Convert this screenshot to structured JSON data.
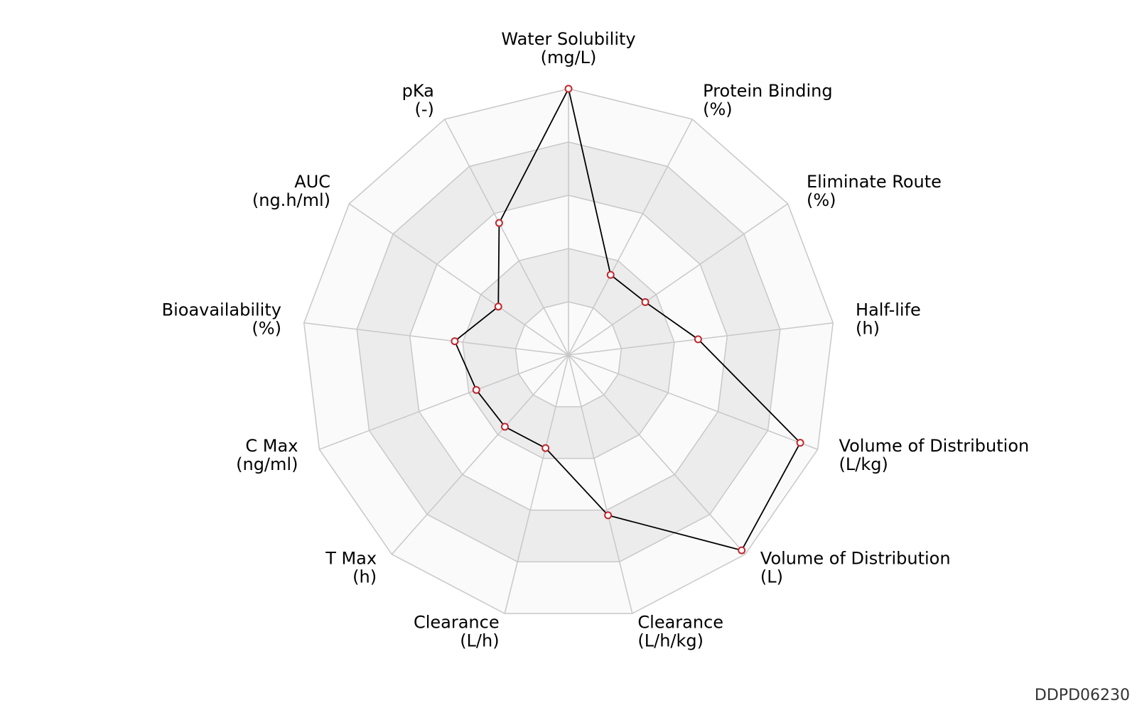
{
  "chart_data": {
    "type": "radar",
    "axes": [
      {
        "name": "Water Solubility",
        "unit": "(mg/L)"
      },
      {
        "name": "Protein Binding",
        "unit": "(%)"
      },
      {
        "name": "Eliminate Route",
        "unit": "(%)"
      },
      {
        "name": "Half-life",
        "unit": "(h)"
      },
      {
        "name": "Volume of Distribution",
        "unit": "(L/kg)"
      },
      {
        "name": "Volume of Distribution",
        "unit": "(L)"
      },
      {
        "name": "Clearance",
        "unit": "(L/h/kg)"
      },
      {
        "name": "Clearance",
        "unit": "(L/h)"
      },
      {
        "name": "T Max",
        "unit": "(h)"
      },
      {
        "name": "C Max",
        "unit": "(ng/ml)"
      },
      {
        "name": "Bioavailability",
        "unit": "(%)"
      },
      {
        "name": "AUC",
        "unit": "(ng.h/ml)"
      },
      {
        "name": "pKa",
        "unit": "(-)"
      }
    ],
    "values": [
      1.0,
      0.34,
      0.35,
      0.49,
      0.93,
      0.98,
      0.62,
      0.36,
      0.36,
      0.37,
      0.43,
      0.32,
      0.56
    ],
    "range": [
      0,
      1
    ],
    "rings": 5,
    "colors": {
      "band_light": "#fafafa",
      "band_dark": "#ececec",
      "grid": "#c8c8c8",
      "line": "#000000",
      "marker": "#c0272d"
    }
  },
  "footer": {
    "id": "DDPD06230"
  }
}
